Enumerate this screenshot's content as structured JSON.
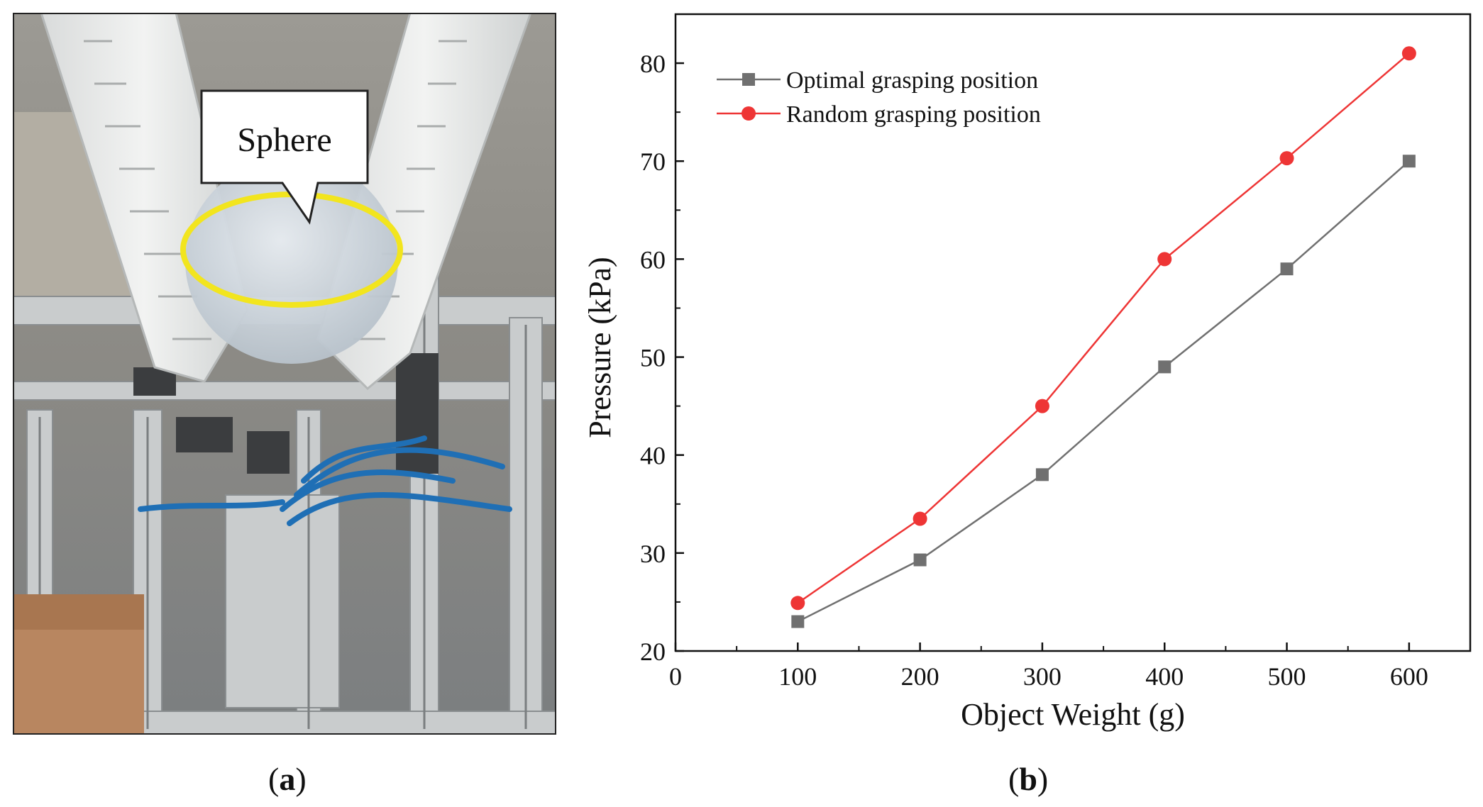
{
  "figure": {
    "panel_a": {
      "caption_open": "(",
      "caption_letter": "a",
      "caption_close": ")",
      "callout_text": "Sphere",
      "colors": {
        "highlight_ring": "#f2e51e",
        "tube": "#1f6fb5"
      }
    },
    "panel_b": {
      "caption_open": "(",
      "caption_letter": "b",
      "caption_close": ")"
    }
  },
  "chart_data": {
    "type": "line",
    "x": [
      100,
      200,
      300,
      400,
      500,
      600
    ],
    "series": [
      {
        "name": "Optimal grasping position",
        "values": [
          23,
          29.3,
          38,
          49,
          59,
          70
        ],
        "color": "#707070",
        "marker": "square"
      },
      {
        "name": "Random grasping position",
        "values": [
          24.9,
          33.5,
          45,
          60,
          70.3,
          81
        ],
        "color": "#ee3535",
        "marker": "circle"
      }
    ],
    "xlabel": "Object Weight (g)",
    "ylabel": "Pressure (kPa)",
    "xlim": [
      0,
      650
    ],
    "ylim": [
      20,
      85
    ],
    "xticks": [
      "0",
      "100",
      "200",
      "300",
      "400",
      "500",
      "600"
    ],
    "yticks": [
      "20",
      "30",
      "40",
      "50",
      "60",
      "70",
      "80"
    ],
    "grid": false,
    "legend_position": "top-left"
  }
}
